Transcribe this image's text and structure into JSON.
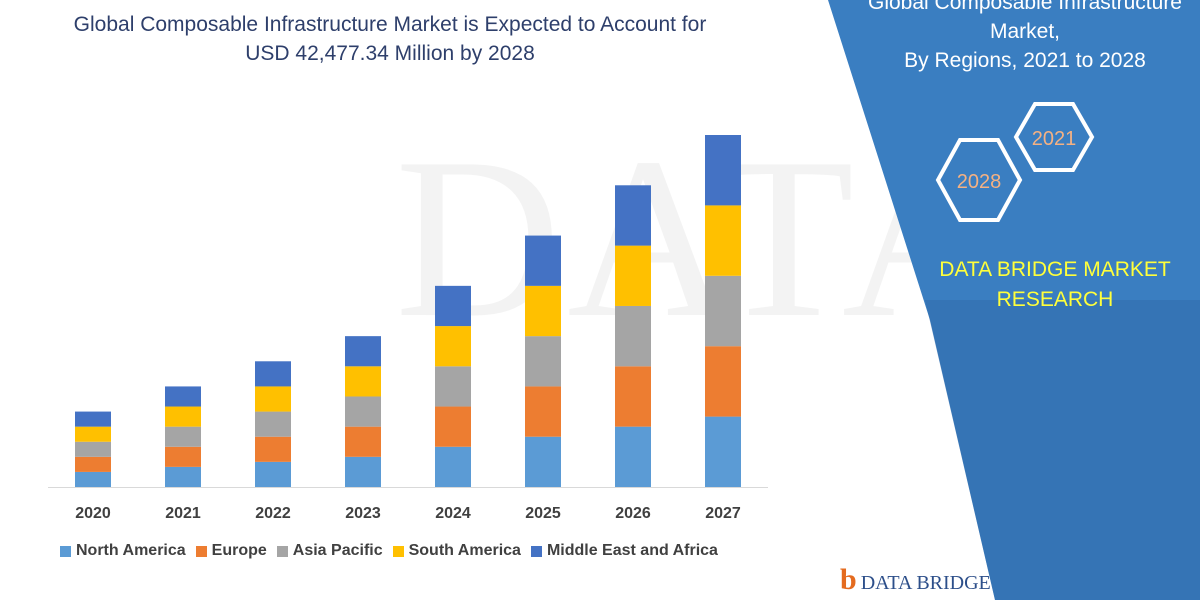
{
  "title_line1": "Global Composable Infrastructure Market is Expected to Account for",
  "title_line2": "USD 42,477.34 Million by 2028",
  "right_panel": {
    "title_line1": "Global Composable Infrastructure",
    "title_line2": "Market,",
    "title_line3": "By Regions, 2021 to 2028",
    "badge_front": "2028",
    "badge_back": "2021",
    "brand_line1": "DATA BRIDGE MARKET",
    "brand_line2": "RESEARCH"
  },
  "watermark_text": "DATABRIDGE",
  "footer_logo_text": "DATA BRIDGE",
  "colors": {
    "panel": "#3a7ec1",
    "title_text": "#2e3f6b",
    "brand_text": "#ffff3b",
    "badge_text": "#f4b183"
  },
  "chart_data": {
    "type": "bar",
    "stacked": true,
    "categories": [
      "2020",
      "2021",
      "2022",
      "2023",
      "2024",
      "2025",
      "2026",
      "2027"
    ],
    "series": [
      {
        "name": "North America",
        "color": "#5b9bd5",
        "values": [
          3,
          4,
          5,
          6,
          8,
          10,
          12,
          14
        ]
      },
      {
        "name": "Europe",
        "color": "#ed7d31",
        "values": [
          3,
          4,
          5,
          6,
          8,
          10,
          12,
          14
        ]
      },
      {
        "name": "Asia Pacific",
        "color": "#a5a5a5",
        "values": [
          3,
          4,
          5,
          6,
          8,
          10,
          12,
          14
        ]
      },
      {
        "name": "South America",
        "color": "#ffc000",
        "values": [
          3,
          4,
          5,
          6,
          8,
          10,
          12,
          14
        ]
      },
      {
        "name": "Middle East and Africa",
        "color": "#4472c4",
        "values": [
          3,
          4,
          5,
          6,
          8,
          10,
          12,
          14
        ]
      }
    ],
    "ylim": [
      0,
      70
    ],
    "grid": false,
    "legend_position": "bottom"
  }
}
